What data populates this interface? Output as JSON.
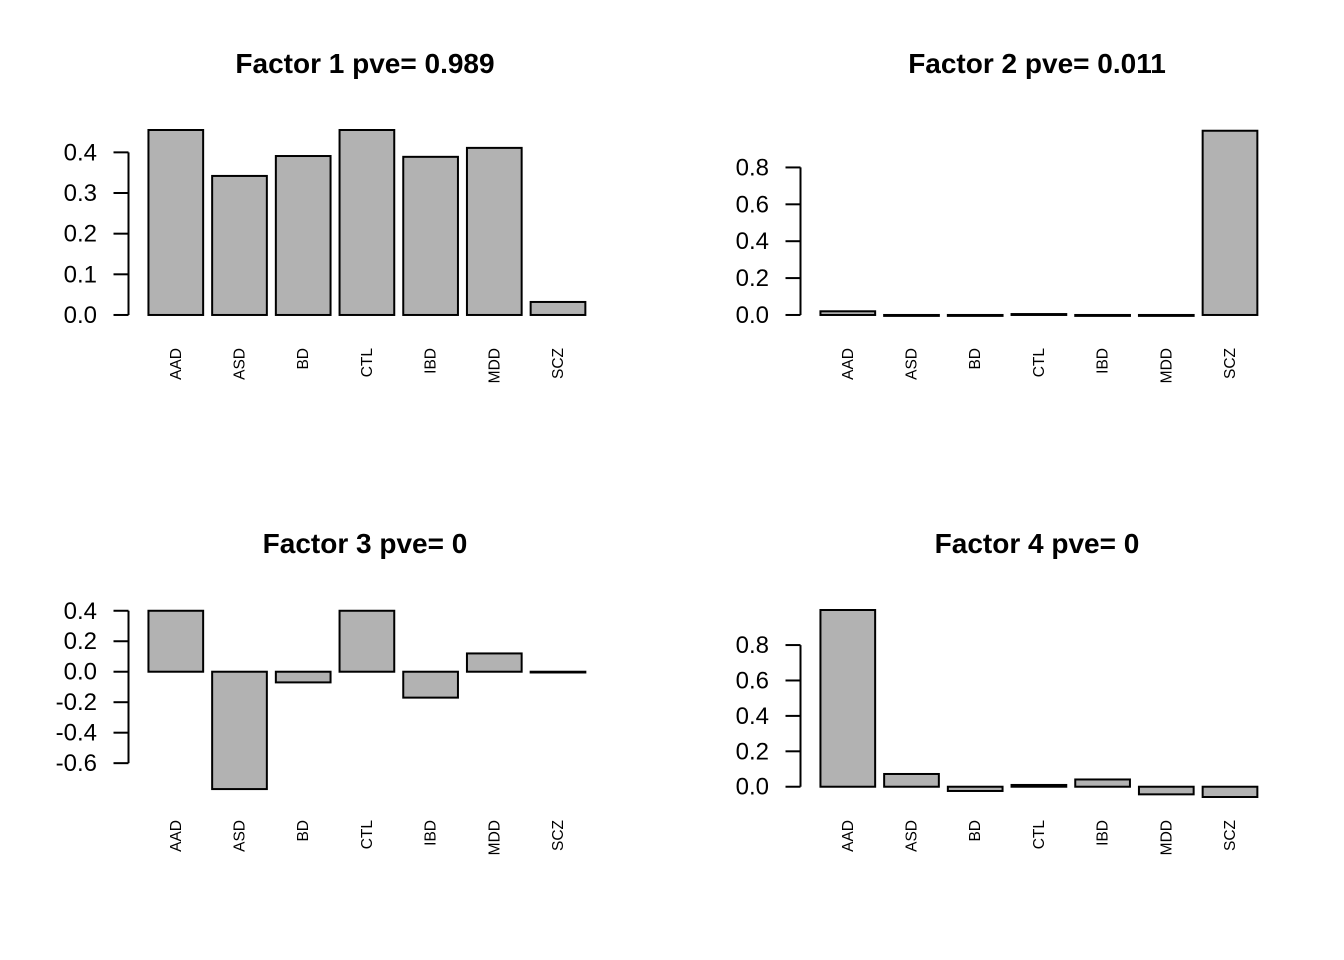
{
  "figure": {
    "background": "#ffffff",
    "bar_fill": "#b2b2b2",
    "bar_stroke": "#000000",
    "text_color": "#000000"
  },
  "chart_data": [
    {
      "type": "bar",
      "title": "Factor 1 pve= 0.989",
      "categories": [
        "AAD",
        "ASD",
        "BD",
        "CTL",
        "IBD",
        "MDD",
        "SCZ"
      ],
      "values": [
        0.455,
        0.342,
        0.391,
        0.455,
        0.389,
        0.411,
        0.032
      ],
      "yticks": [
        0.0,
        0.1,
        0.2,
        0.3,
        0.4
      ],
      "ytick_labels": [
        "0.0",
        "0.1",
        "0.2",
        "0.3",
        "0.4"
      ],
      "ylim": [
        -0.005,
        0.455
      ],
      "xlabel": "",
      "ylabel": "",
      "grid": false,
      "legend": "none"
    },
    {
      "type": "bar",
      "title": "Factor 2 pve= 0.011",
      "categories": [
        "AAD",
        "ASD",
        "BD",
        "CTL",
        "IBD",
        "MDD",
        "SCZ"
      ],
      "values": [
        0.02,
        -0.005,
        -0.005,
        0.005,
        -0.005,
        -0.005,
        0.999
      ],
      "yticks": [
        0.0,
        0.2,
        0.4,
        0.6,
        0.8
      ],
      "ytick_labels": [
        "0.0",
        "0.2",
        "0.4",
        "0.6",
        "0.8"
      ],
      "ylim": [
        -0.011,
        1.003
      ],
      "xlabel": "",
      "ylabel": "",
      "grid": false,
      "legend": "none"
    },
    {
      "type": "bar",
      "title": "Factor 3 pve= 0",
      "categories": [
        "AAD",
        "ASD",
        "BD",
        "CTL",
        "IBD",
        "MDD",
        "SCZ"
      ],
      "values": [
        0.4,
        -0.77,
        -0.07,
        0.4,
        -0.17,
        0.12,
        -0.005
      ],
      "yticks": [
        -0.6,
        -0.4,
        -0.2,
        0.0,
        0.2,
        0.4
      ],
      "ytick_labels": [
        "-0.6",
        "-0.4",
        "-0.2",
        "0.0",
        "0.2",
        "0.4"
      ],
      "ylim": [
        -0.822,
        0.405
      ],
      "xlabel": "",
      "ylabel": "",
      "grid": false,
      "legend": "none"
    },
    {
      "type": "bar",
      "title": "Factor 4 pve= 0",
      "categories": [
        "AAD",
        "ASD",
        "BD",
        "CTL",
        "IBD",
        "MDD",
        "SCZ"
      ],
      "values": [
        0.998,
        0.072,
        -0.024,
        0.01,
        0.041,
        -0.043,
        -0.058
      ],
      "yticks": [
        0.0,
        0.2,
        0.4,
        0.6,
        0.8
      ],
      "ytick_labels": [
        "0.0",
        "0.2",
        "0.4",
        "0.6",
        "0.8"
      ],
      "ylim": [
        -0.058,
        0.998
      ],
      "xlabel": "",
      "ylabel": "",
      "grid": false,
      "legend": "none"
    }
  ]
}
